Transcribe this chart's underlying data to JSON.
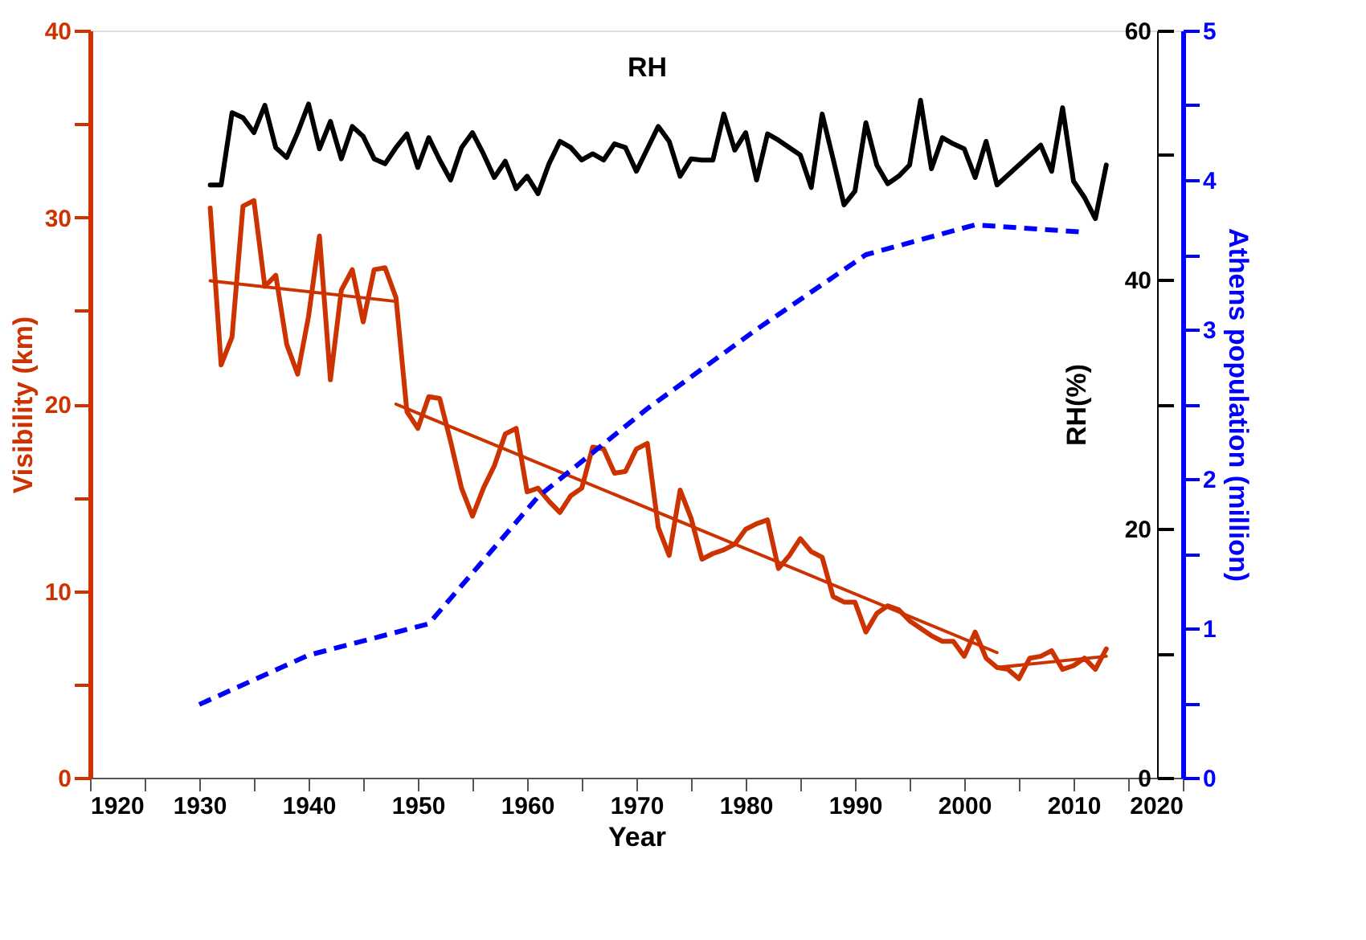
{
  "chart_data": {
    "type": "line",
    "xlabel": "Year",
    "ylabel": "Visibility (km)",
    "y2label": "RH(%)",
    "y3label": "Athens population (million)",
    "xlim": [
      1920,
      2020
    ],
    "xticks": [
      1920,
      {
        "value": 1925,
        "label": null
      },
      1930,
      {
        "value": 1935,
        "label": null
      },
      1940,
      {
        "value": 1945,
        "label": null
      },
      1950,
      {
        "value": 1955,
        "label": null
      },
      1960,
      {
        "value": 1965,
        "label": null
      },
      1970,
      {
        "value": 1975,
        "label": null
      },
      1980,
      {
        "value": 1985,
        "label": null
      },
      1990,
      {
        "value": 1995,
        "label": null
      },
      2000,
      {
        "value": 2005,
        "label": null
      },
      2010,
      {
        "value": 2015,
        "label": null
      },
      2020
    ],
    "ylim": [
      0,
      40
    ],
    "yticks": [
      0,
      {
        "value": 5,
        "label": null
      },
      10,
      {
        "value": 15,
        "label": null
      },
      20,
      {
        "value": 25,
        "label": null
      },
      30,
      {
        "value": 35,
        "label": null
      },
      40
    ],
    "y2lim": [
      0,
      60
    ],
    "y2ticks": [
      0,
      {
        "value": 10,
        "label": null
      },
      20,
      {
        "value": 30,
        "label": null
      },
      40,
      {
        "value": 50,
        "label": null
      },
      60
    ],
    "y3lim": [
      0,
      5
    ],
    "y3ticks": [
      0,
      {
        "value": 0.5,
        "label": null
      },
      1,
      {
        "value": 1.5,
        "label": null
      },
      2,
      {
        "value": 2.5,
        "label": null
      },
      3,
      {
        "value": 3.5,
        "label": null
      },
      4,
      {
        "value": 4.5,
        "label": null
      },
      5
    ],
    "grid": false,
    "series": [
      {
        "color": "#cc3300",
        "x": [
          1931,
          1932,
          1933,
          1934,
          1935,
          1936,
          1937,
          1938,
          1939,
          1940,
          1941,
          1942,
          1943,
          1944,
          1945,
          1946,
          1947,
          1948,
          1949,
          1950,
          1951,
          1952,
          1953,
          1954,
          1955,
          1956,
          1957,
          1958,
          1959,
          1960,
          1961,
          1962,
          1963,
          1964,
          1965,
          1966,
          1967,
          1968,
          1969,
          1970,
          1971,
          1972,
          1973,
          1974,
          1975,
          1976,
          1977,
          1978,
          1979,
          1980,
          1981,
          1982,
          1983,
          1984,
          1985,
          1986,
          1987,
          1988,
          1989,
          1990,
          1991,
          1992,
          1993,
          1994,
          1995,
          1996,
          1997,
          1998,
          1999,
          2000,
          2001,
          2002,
          2003,
          2004,
          2005,
          2006,
          2007,
          2008,
          2009,
          2010,
          2011,
          2012,
          2013
        ],
        "values": [
          30.5,
          22.1,
          23.6,
          30.6,
          30.9,
          26.3,
          26.9,
          23.2,
          21.6,
          24.7,
          29.0,
          21.3,
          26.1,
          27.2,
          24.4,
          27.2,
          27.3,
          25.7,
          19.6,
          18.7,
          20.4,
          20.3,
          18.0,
          15.5,
          14.0,
          15.5,
          16.7,
          18.4,
          18.7,
          15.3,
          15.5,
          14.8,
          14.2,
          15.1,
          15.5,
          17.7,
          17.6,
          16.3,
          16.4,
          17.6,
          17.9,
          13.4,
          11.9,
          15.4,
          13.9,
          11.7,
          12.0,
          12.2,
          12.5,
          13.3,
          13.6,
          13.8,
          11.2,
          11.9,
          12.8,
          12.1,
          11.8,
          9.7,
          9.4,
          9.4,
          7.8,
          8.8,
          9.2,
          9.0,
          8.4,
          8.0,
          7.6,
          7.3,
          7.3,
          6.5,
          7.8,
          6.4,
          5.9,
          5.8,
          5.3,
          6.4,
          6.5,
          6.8,
          5.8,
          6.0,
          6.4,
          5.8,
          6.9
        ]
      },
      {
        "color": "#cc3300",
        "x": [
          1931,
          1948
        ],
        "values": [
          26.6,
          25.5
        ]
      },
      {
        "color": "#cc3300",
        "x": [
          1948,
          2003
        ],
        "values": [
          20.0,
          6.7
        ]
      },
      {
        "color": "#cc3300",
        "x": [
          2003,
          2013
        ],
        "values": [
          5.9,
          6.5
        ]
      },
      {
        "name": "RH",
        "axis": "y2",
        "color": "#000000",
        "x": [
          1931,
          1932,
          1933,
          1934,
          1935,
          1936,
          1937,
          1938,
          1939,
          1940,
          1941,
          1942,
          1943,
          1944,
          1945,
          1946,
          1947,
          1948,
          1949,
          1950,
          1951,
          1952,
          1953,
          1954,
          1955,
          1956,
          1957,
          1958,
          1959,
          1960,
          1961,
          1962,
          1963,
          1964,
          1965,
          1966,
          1967,
          1968,
          1969,
          1970,
          1971,
          1972,
          1973,
          1974,
          1975,
          1976,
          1977,
          1978,
          1979,
          1980,
          1981,
          1982,
          1983,
          1984,
          1985,
          1986,
          1987,
          1988,
          1989,
          1990,
          1991,
          1992,
          1993,
          1994,
          1995,
          1996,
          1997,
          1998,
          1999,
          2000,
          2001,
          2002,
          2003,
          2007,
          2008,
          2009,
          2010,
          2011,
          2012,
          2013
        ],
        "values": [
          47.6,
          47.6,
          53.4,
          53.0,
          51.8,
          54.0,
          50.6,
          49.8,
          51.8,
          54.1,
          50.5,
          52.7,
          49.7,
          52.3,
          51.5,
          49.7,
          49.3,
          50.6,
          51.7,
          49.0,
          51.4,
          49.6,
          48.0,
          50.6,
          51.8,
          50.1,
          48.2,
          49.5,
          47.3,
          48.3,
          46.9,
          49.3,
          51.1,
          50.6,
          49.6,
          50.1,
          49.6,
          50.9,
          50.6,
          48.7,
          50.5,
          52.3,
          51.1,
          48.3,
          49.7,
          49.6,
          49.6,
          53.3,
          50.4,
          51.8,
          48.0,
          51.7,
          51.2,
          50.6,
          50.0,
          47.4,
          53.3,
          49.7,
          46.0,
          47.1,
          52.6,
          49.2,
          47.7,
          48.3,
          49.2,
          54.4,
          48.9,
          51.4,
          50.9,
          50.5,
          48.2,
          51.1,
          47.6,
          50.8,
          48.7,
          53.8,
          47.9,
          46.6,
          44.9,
          49.2
        ]
      },
      {
        "axis": "y3",
        "color": "#0000ff",
        "line_style": "dashed",
        "x": [
          1930,
          1940,
          1951,
          1961,
          1971,
          1981,
          1991,
          2001,
          2011
        ],
        "values": [
          0.49,
          0.82,
          1.03,
          1.88,
          2.47,
          3.0,
          3.5,
          3.7,
          3.65
        ]
      }
    ]
  }
}
